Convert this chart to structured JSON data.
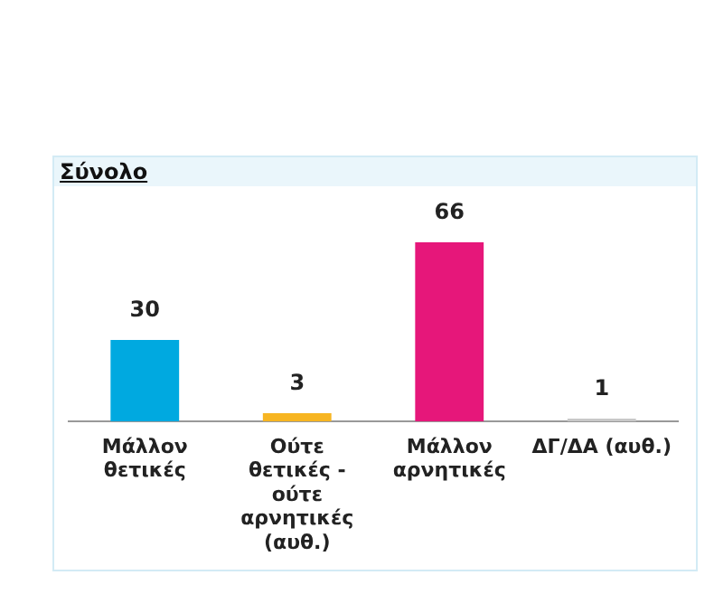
{
  "chart_data": {
    "type": "bar",
    "title": "Σύνολο",
    "categories": [
      "Μάλλον θετικές",
      "Ούτε θετικές - ούτε αρνητικές (αυθ.)",
      "Μάλλον αρνητικές",
      "ΔΓ/ΔΑ (αυθ.)"
    ],
    "values": [
      30,
      3,
      66,
      1
    ],
    "colors": [
      "#00a9e0",
      "#f7b522",
      "#e6177a",
      "#c8c8c8"
    ],
    "data_labels": true,
    "grid": false,
    "legend": false
  }
}
